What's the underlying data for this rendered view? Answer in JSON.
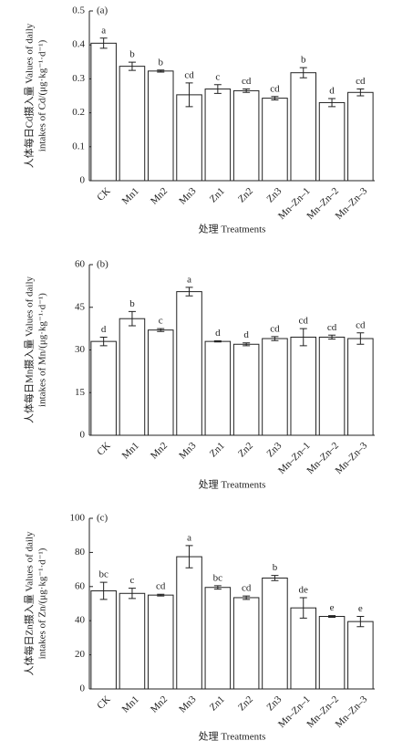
{
  "chart_data": [
    {
      "type": "bar",
      "panel": "(a)",
      "ylabel": [
        "人体每日Cd摄入量 Values of daily",
        "intakes of Cd/(μg·kg⁻¹·d⁻¹)"
      ],
      "xlabel": "处理 Treatments",
      "categories": [
        "CK",
        "Mn1",
        "Mn2",
        "Mn3",
        "Zn1",
        "Zn2",
        "Zn3",
        "Mn–Zn–1",
        "Mn–Zn–2",
        "Mn–Zn–3"
      ],
      "values": [
        0.405,
        0.337,
        0.323,
        0.253,
        0.27,
        0.265,
        0.243,
        0.318,
        0.23,
        0.26
      ],
      "errors": [
        0.015,
        0.012,
        0.003,
        0.035,
        0.013,
        0.005,
        0.005,
        0.015,
        0.012,
        0.01
      ],
      "letters": [
        "a",
        "b",
        "b",
        "cd",
        "c",
        "cd",
        "cd",
        "b",
        "d",
        "cd"
      ],
      "color": "#ffffff",
      "ylim": [
        0,
        0.5
      ],
      "yticks": [
        0,
        0.1,
        0.2,
        0.3,
        0.4,
        0.5
      ]
    },
    {
      "type": "bar",
      "panel": "(b)",
      "ylabel": [
        "人体每日Mn摄入量 Values of daily",
        "intakes of Mn/(μg·kg⁻¹·d⁻¹)"
      ],
      "xlabel": "处理 Treatments",
      "categories": [
        "CK",
        "Mn1",
        "Mn2",
        "Mn3",
        "Zn1",
        "Zn2",
        "Zn3",
        "Mn–Zn–1",
        "Mn–Zn–2",
        "Mn–Zn–3"
      ],
      "values": [
        33,
        41,
        37,
        50.5,
        33,
        32,
        34,
        34.5,
        34.5,
        34
      ],
      "errors": [
        1.5,
        2.5,
        0.5,
        1.5,
        0.2,
        0.5,
        0.7,
        3,
        0.7,
        2
      ],
      "letters": [
        "d",
        "b",
        "c",
        "a",
        "d",
        "d",
        "cd",
        "cd",
        "cd",
        "cd"
      ],
      "color": "#ffffff",
      "ylim": [
        0,
        60
      ],
      "yticks": [
        0,
        15,
        30,
        45,
        60
      ]
    },
    {
      "type": "bar",
      "panel": "(c)",
      "ylabel": [
        "人体每日Zn摄入量 Values of daily",
        "intakes of Zn/(μg·kg⁻¹·d⁻¹)"
      ],
      "xlabel": "处理 Treatments",
      "categories": [
        "CK",
        "Mn1",
        "Mn2",
        "Mn3",
        "Zn1",
        "Zn2",
        "Zn3",
        "Mn–Zn–1",
        "Mn–Zn–2",
        "Mn–Zn–3"
      ],
      "values": [
        57.5,
        56,
        55,
        77.5,
        59.5,
        53.5,
        65,
        47.5,
        42.5,
        39.5
      ],
      "errors": [
        5,
        3,
        0.5,
        6.5,
        1,
        1,
        1.5,
        6,
        0.5,
        3
      ],
      "letters": [
        "bc",
        "c",
        "cd",
        "a",
        "bc",
        "cd",
        "b",
        "de",
        "e",
        "e"
      ],
      "color": "#ffffff",
      "ylim": [
        0,
        100
      ],
      "yticks": [
        0,
        20,
        40,
        60,
        80,
        100
      ]
    }
  ]
}
